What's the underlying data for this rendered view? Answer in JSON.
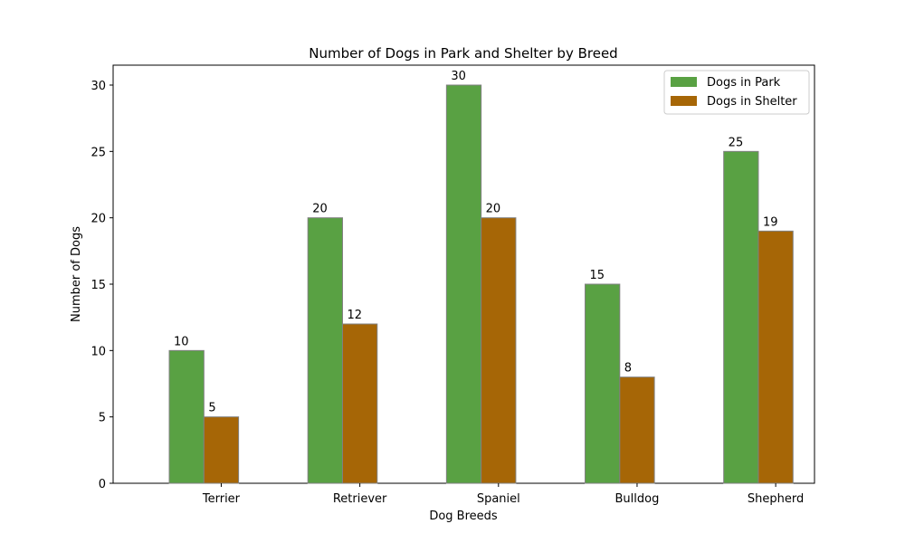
{
  "chart_data": {
    "type": "bar",
    "title": "Number of Dogs in Park and Shelter by Breed",
    "xlabel": "Dog Breeds",
    "ylabel": "Number of Dogs",
    "categories": [
      "Terrier",
      "Retriever",
      "Spaniel",
      "Bulldog",
      "Shepherd"
    ],
    "series": [
      {
        "name": "Dogs in Park",
        "values": [
          10,
          20,
          30,
          15,
          25
        ],
        "color": "#59a143"
      },
      {
        "name": "Dogs in Shelter",
        "values": [
          5,
          12,
          20,
          8,
          19
        ],
        "color": "#a66606"
      }
    ],
    "ylim": [
      0,
      31.5
    ],
    "yticks": [
      0,
      5,
      10,
      15,
      20,
      25,
      30
    ],
    "grid": false,
    "legend_position": "top-right",
    "bar_edge_color": "#808080"
  }
}
